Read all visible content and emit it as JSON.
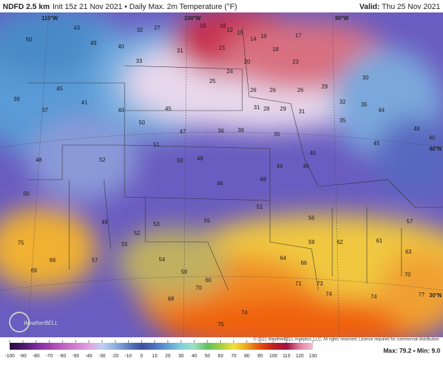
{
  "header": {
    "product": "NDFD 2.5 km",
    "subtitle": "Init 15z 21 Nov 2021 • Daily Max. 2m Temperature (°F)",
    "valid_label": "Valid:",
    "valid_time": "Thu 25 Nov 2021"
  },
  "graticule": {
    "lon": [
      "110°W",
      "100°W",
      "90°W"
    ],
    "lat": [
      "40°N",
      "30°N"
    ]
  },
  "stations": [
    "16",
    "16",
    "12",
    "15",
    "14",
    "16",
    "18",
    "17",
    "21",
    "20",
    "23",
    "25",
    "24",
    "26",
    "26",
    "26",
    "29",
    "30",
    "32",
    "35",
    "31",
    "29",
    "28",
    "31",
    "33",
    "31",
    "27",
    "32",
    "40",
    "43",
    "50",
    "49",
    "45",
    "41",
    "39",
    "37",
    "40",
    "50",
    "47",
    "45",
    "39",
    "36",
    "35",
    "35",
    "44",
    "48",
    "40",
    "45",
    "40",
    "44",
    "46",
    "48",
    "51",
    "50",
    "48",
    "46",
    "52",
    "48",
    "50",
    "51",
    "55",
    "53",
    "49",
    "52",
    "56",
    "57",
    "59",
    "62",
    "61",
    "63",
    "64",
    "66",
    "70",
    "71",
    "73",
    "74",
    "74",
    "77",
    "70",
    "75",
    "74",
    "66",
    "75",
    "69",
    "59",
    "60",
    "55",
    "57",
    "54",
    "68"
  ],
  "logo": "WeatherBELL",
  "copyright": "© 2021 WeatherBELL Analytics, LLC. All rights reserved. License required for commercial distribution.",
  "extremes": "Max: 79.2 • Min: 9.0",
  "colorbar": {
    "ticks": [
      -100,
      -90,
      -80,
      -70,
      -60,
      -50,
      -40,
      -30,
      -20,
      -10,
      0,
      10,
      20,
      30,
      40,
      50,
      60,
      70,
      80,
      90,
      100,
      110,
      120,
      130
    ],
    "colors": [
      "#2a0a3a",
      "#4a1a6a",
      "#7a2a9a",
      "#a040b0",
      "#c060c0",
      "#d080d0",
      "#e0a0e0",
      "#c0d0f0",
      "#90b0e0",
      "#6080c0",
      "#4050a0",
      "#5070c0",
      "#60a0d0",
      "#80d0e0",
      "#a0e0c0",
      "#60c060",
      "#a0d040",
      "#f0e040",
      "#f0a020",
      "#e05010",
      "#c02020",
      "#a01040",
      "#e080a0",
      "#f0c0d0"
    ]
  }
}
